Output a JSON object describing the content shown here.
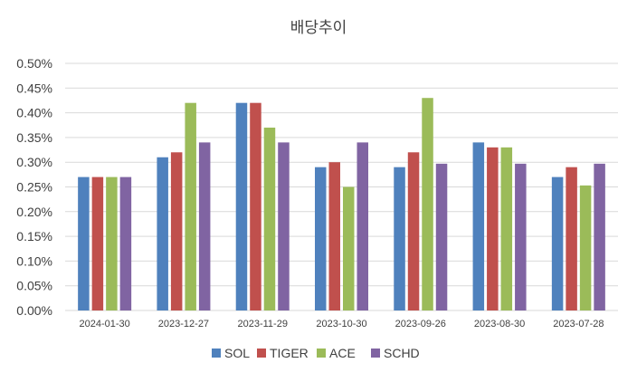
{
  "chart_data": {
    "type": "bar",
    "title": "배당추이",
    "xlabel": "",
    "ylabel": "",
    "ylim": [
      0,
      0.5
    ],
    "grid": true,
    "legend_position": "bottom",
    "y_ticks": [
      "0.00%",
      "0.05%",
      "0.10%",
      "0.15%",
      "0.20%",
      "0.25%",
      "0.30%",
      "0.35%",
      "0.40%",
      "0.45%",
      "0.50%"
    ],
    "categories": [
      "2024-01-30",
      "2023-12-27",
      "2023-11-29",
      "2023-10-30",
      "2023-09-26",
      "2023-08-30",
      "2023-07-28"
    ],
    "series": [
      {
        "name": "SOL",
        "color": "#4f81bd",
        "values": [
          0.27,
          0.31,
          0.42,
          0.29,
          0.29,
          0.34,
          0.27
        ]
      },
      {
        "name": "TIGER",
        "color": "#c0504d",
        "values": [
          0.27,
          0.32,
          0.42,
          0.3,
          0.32,
          0.33,
          0.29
        ]
      },
      {
        "name": "ACE",
        "color": "#9bbb59",
        "values": [
          0.27,
          0.42,
          0.37,
          0.25,
          0.43,
          0.33,
          0.253
        ]
      },
      {
        "name": "SCHD",
        "color": "#8064a2",
        "values": [
          0.27,
          0.34,
          0.34,
          0.34,
          0.297,
          0.297,
          0.297
        ]
      }
    ]
  }
}
